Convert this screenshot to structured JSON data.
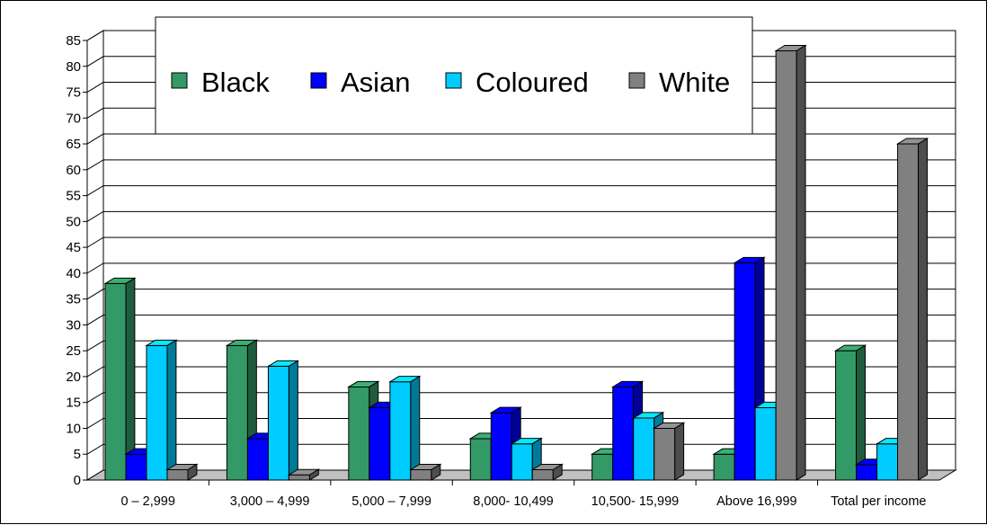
{
  "chart_data": {
    "type": "bar",
    "title": "",
    "xlabel": "",
    "ylabel": "",
    "ylim": [
      0,
      85
    ],
    "yticks": [
      0,
      5,
      10,
      15,
      20,
      25,
      30,
      35,
      40,
      45,
      50,
      55,
      60,
      65,
      70,
      75,
      80,
      85
    ],
    "grid": true,
    "style": "3d-clustered-columns",
    "legend": {
      "position": "top-center",
      "orientation": "horizontal",
      "boxed": true
    },
    "categories": [
      "0 –  2,999",
      "3,000 – 4,999",
      "5,000 – 7,999",
      "8,000- 10,499",
      "10,500- 15,999",
      "Above 16,999",
      "Total per income"
    ],
    "series": [
      {
        "name": "Black",
        "color": "#339966",
        "values": [
          38,
          26,
          18,
          8,
          5,
          5,
          25
        ]
      },
      {
        "name": "Asian",
        "color": "#0000FF",
        "values": [
          5,
          8,
          14,
          13,
          18,
          42,
          3
        ]
      },
      {
        "name": "Coloured",
        "color": "#00CCFF",
        "values": [
          26,
          22,
          19,
          7,
          12,
          14,
          7
        ]
      },
      {
        "name": "White",
        "color": "#808080",
        "values": [
          2,
          1,
          2,
          2,
          10,
          83,
          65
        ]
      }
    ]
  }
}
